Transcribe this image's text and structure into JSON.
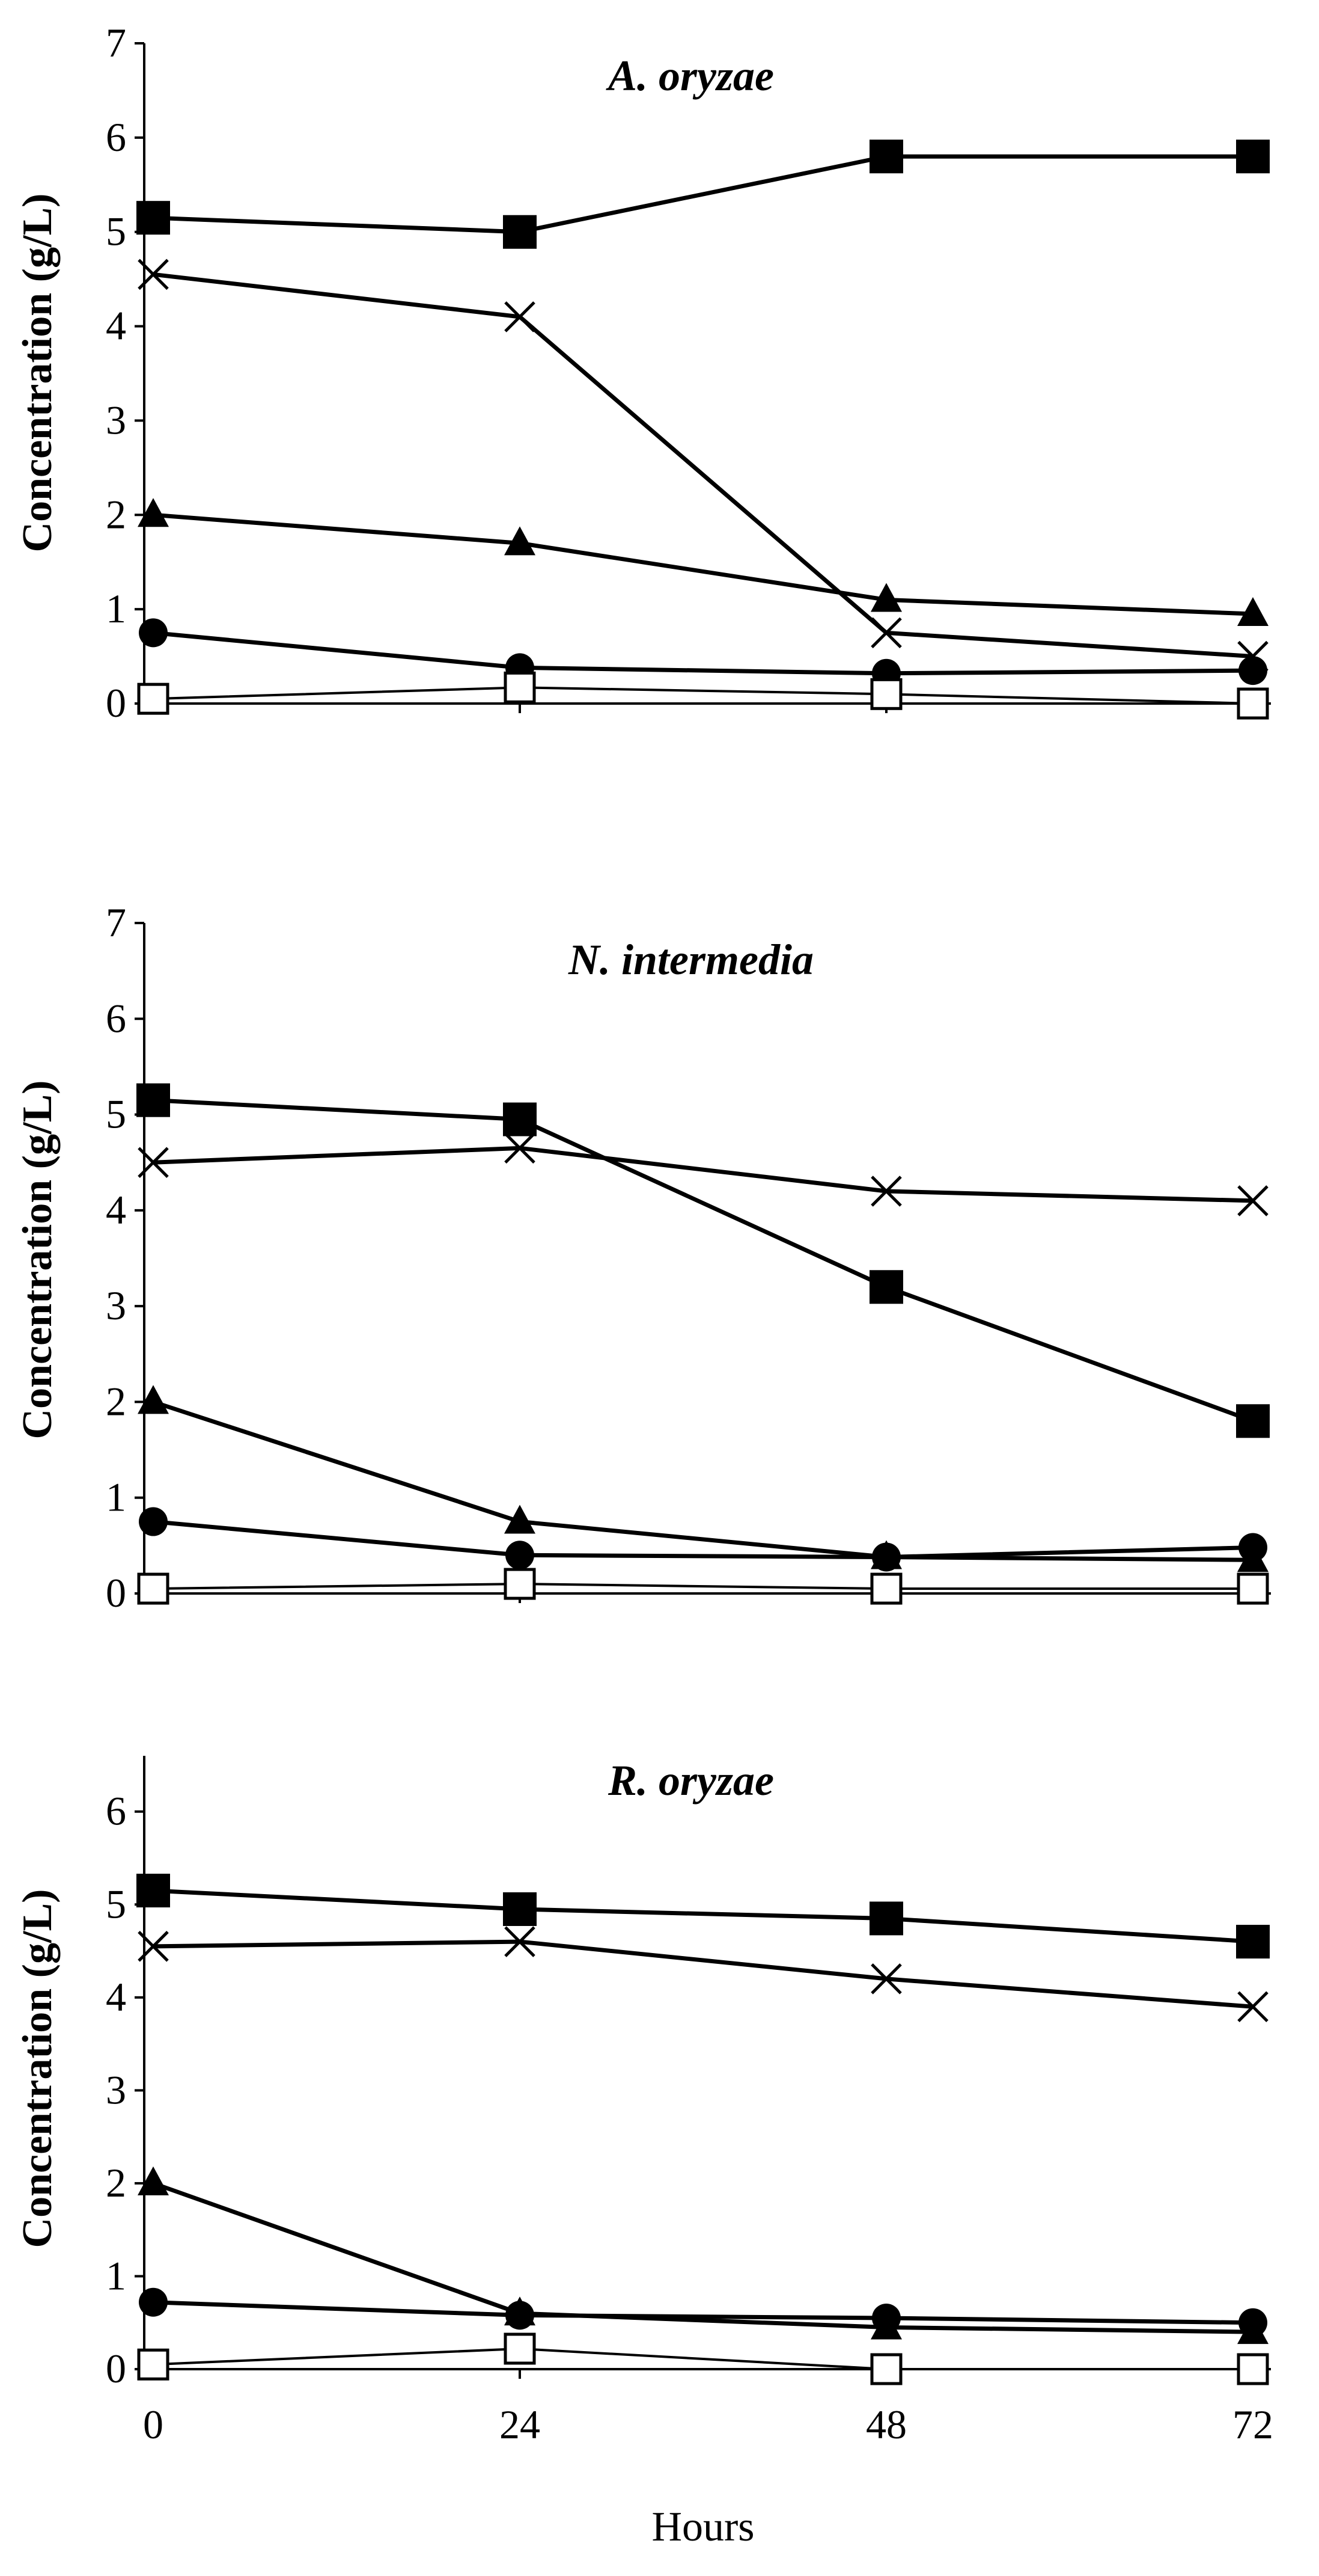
{
  "chart_data": [
    {
      "type": "line",
      "title": "A. oryzae",
      "ylabel": "Concentration (g/L)",
      "ylim": [
        0,
        7
      ],
      "yticks": [
        0,
        1,
        2,
        3,
        4,
        5,
        6,
        7
      ],
      "x": [
        0,
        24,
        48,
        72
      ],
      "series": [
        {
          "marker": "filled-square",
          "values": [
            5.15,
            5.0,
            5.8,
            5.8
          ]
        },
        {
          "marker": "cross",
          "values": [
            4.55,
            4.1,
            0.75,
            0.5
          ]
        },
        {
          "marker": "filled-triangle",
          "values": [
            2.0,
            1.7,
            1.1,
            0.95
          ]
        },
        {
          "marker": "filled-circle",
          "values": [
            0.75,
            0.38,
            0.32,
            0.35
          ]
        },
        {
          "marker": "open-square",
          "values": [
            0.05,
            0.17,
            0.1,
            0.0
          ]
        }
      ]
    },
    {
      "type": "line",
      "title": "N. intermedia",
      "ylabel": "Concentration (g/L)",
      "ylim": [
        0,
        7
      ],
      "yticks": [
        0,
        1,
        2,
        3,
        4,
        5,
        6,
        7
      ],
      "x": [
        0,
        24,
        48,
        72
      ],
      "series": [
        {
          "marker": "filled-square",
          "values": [
            5.15,
            4.95,
            3.2,
            1.8
          ]
        },
        {
          "marker": "cross",
          "values": [
            4.5,
            4.65,
            4.2,
            4.1
          ]
        },
        {
          "marker": "filled-triangle",
          "values": [
            2.0,
            0.75,
            0.38,
            0.35
          ]
        },
        {
          "marker": "filled-circle",
          "values": [
            0.75,
            0.4,
            0.38,
            0.48
          ]
        },
        {
          "marker": "open-square",
          "values": [
            0.05,
            0.1,
            0.05,
            0.05
          ]
        }
      ]
    },
    {
      "type": "line",
      "title": "R. oryzae",
      "ylabel": "Concentration (g/L)",
      "xlabel": "Hours",
      "ylim": [
        0,
        6.6
      ],
      "yticks": [
        0,
        1,
        2,
        3,
        4,
        5,
        6
      ],
      "x": [
        0,
        24,
        48,
        72
      ],
      "xticks": [
        0,
        24,
        48,
        72
      ],
      "series": [
        {
          "marker": "filled-square",
          "values": [
            5.15,
            4.95,
            4.85,
            4.6
          ]
        },
        {
          "marker": "cross",
          "values": [
            4.55,
            4.6,
            4.2,
            3.9
          ]
        },
        {
          "marker": "filled-triangle",
          "values": [
            2.0,
            0.6,
            0.45,
            0.4
          ]
        },
        {
          "marker": "filled-circle",
          "values": [
            0.72,
            0.58,
            0.55,
            0.5
          ]
        },
        {
          "marker": "open-square",
          "values": [
            0.05,
            0.22,
            0.0,
            0.0
          ]
        }
      ]
    }
  ]
}
